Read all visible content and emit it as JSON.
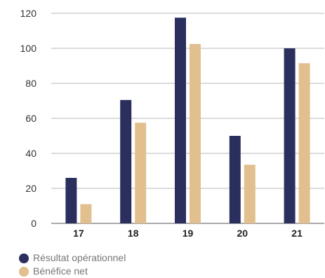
{
  "chart_data": {
    "type": "bar",
    "title": "",
    "xlabel": "",
    "ylabel": "",
    "categories": [
      "17",
      "18",
      "19",
      "20",
      "21"
    ],
    "series": [
      {
        "name": "Résultat opérationnel",
        "color": "#2b2f5e",
        "values": [
          26,
          70.5,
          117.5,
          50,
          100
        ]
      },
      {
        "name": "Bénéfice net",
        "color": "#e2bf8e",
        "values": [
          11,
          57.5,
          102.5,
          33.5,
          91.5
        ]
      }
    ],
    "ylim": [
      0,
      120
    ],
    "yticks": [
      0,
      20,
      40,
      60,
      80,
      100,
      120
    ],
    "grid": true,
    "legend_position": "bottom-left"
  }
}
